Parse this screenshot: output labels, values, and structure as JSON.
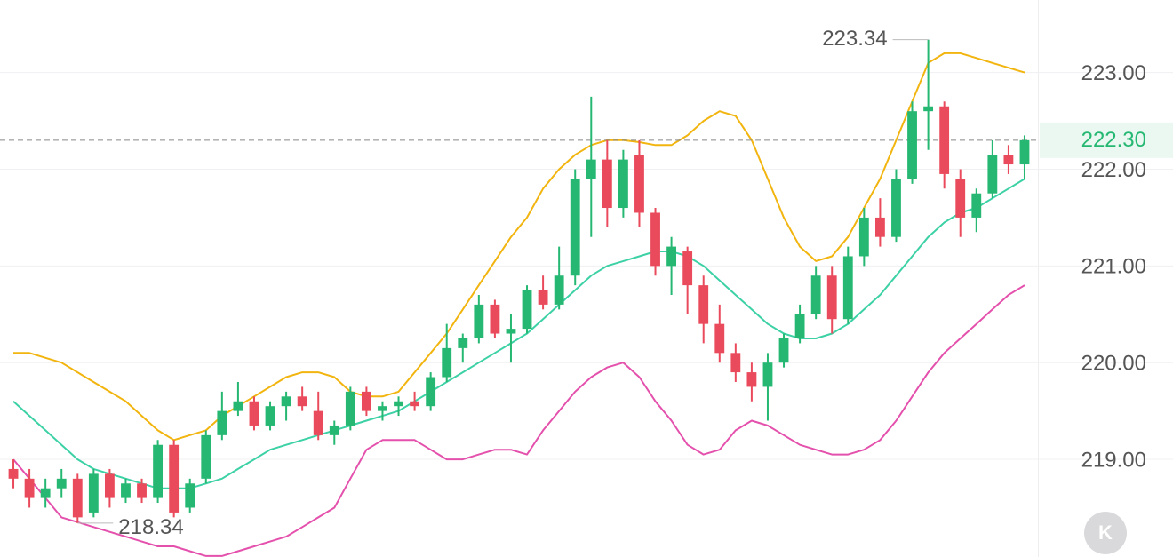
{
  "chart_data": {
    "type": "candlestick",
    "open": [
      218.9,
      218.8,
      218.6,
      218.7,
      218.8,
      218.45,
      218.85,
      218.6,
      218.75,
      218.6,
      219.15,
      218.5,
      218.8,
      219.25,
      219.5,
      219.6,
      219.35,
      219.55,
      219.65,
      219.5,
      219.25,
      219.35,
      219.7,
      219.5,
      219.55,
      219.6,
      219.55,
      219.85,
      220.15,
      220.25,
      220.6,
      220.3,
      220.35,
      220.75,
      220.6,
      220.9,
      221.9,
      222.1,
      221.6,
      222.15,
      221.55,
      221.0,
      221.15,
      220.8,
      220.4,
      220.1,
      219.9,
      219.75,
      220.0,
      220.25,
      220.5,
      220.9,
      220.45,
      221.1,
      221.5,
      221.3,
      221.9,
      222.6,
      222.65,
      221.9,
      221.5,
      221.75,
      222.15,
      222.05
    ],
    "high": [
      219.0,
      218.9,
      218.8,
      218.9,
      218.85,
      218.9,
      218.9,
      218.8,
      218.8,
      219.2,
      219.2,
      218.8,
      219.3,
      219.7,
      219.8,
      219.65,
      219.6,
      219.7,
      219.75,
      219.7,
      219.4,
      219.75,
      219.75,
      219.6,
      219.65,
      219.7,
      219.9,
      220.4,
      220.3,
      220.7,
      220.65,
      220.5,
      220.8,
      220.9,
      221.2,
      222.0,
      222.75,
      222.3,
      222.2,
      222.3,
      221.6,
      221.3,
      221.2,
      220.9,
      220.6,
      220.2,
      220.0,
      220.1,
      220.3,
      220.6,
      221.0,
      221.0,
      221.2,
      221.6,
      221.7,
      222.0,
      222.7,
      223.34,
      222.7,
      222.0,
      221.8,
      222.3,
      222.25,
      222.35
    ],
    "low": [
      218.7,
      218.5,
      218.5,
      218.6,
      218.34,
      218.4,
      218.5,
      218.55,
      218.55,
      218.55,
      218.4,
      218.45,
      218.75,
      219.2,
      219.45,
      219.3,
      219.3,
      219.4,
      219.5,
      219.2,
      219.15,
      219.3,
      219.45,
      219.4,
      219.45,
      219.5,
      219.5,
      219.8,
      220.0,
      220.2,
      220.25,
      220.0,
      220.3,
      220.55,
      220.55,
      220.8,
      221.3,
      221.4,
      221.5,
      221.4,
      220.9,
      220.7,
      220.5,
      220.2,
      220.0,
      219.8,
      219.6,
      219.4,
      219.95,
      220.2,
      220.45,
      220.3,
      220.4,
      221.0,
      221.2,
      221.25,
      221.85,
      222.2,
      221.8,
      221.3,
      221.35,
      221.7,
      221.95,
      221.9
    ],
    "close": [
      218.8,
      218.6,
      218.7,
      218.8,
      218.4,
      218.85,
      218.6,
      218.75,
      218.6,
      219.15,
      218.45,
      218.75,
      219.25,
      219.5,
      219.6,
      219.35,
      219.55,
      219.65,
      219.55,
      219.25,
      219.35,
      219.7,
      219.5,
      219.55,
      219.6,
      219.55,
      219.85,
      220.15,
      220.25,
      220.6,
      220.3,
      220.35,
      220.75,
      220.6,
      220.9,
      221.9,
      222.1,
      221.6,
      222.1,
      221.55,
      221.0,
      221.2,
      220.8,
      220.4,
      220.1,
      219.9,
      219.75,
      220.0,
      220.25,
      220.5,
      220.9,
      220.45,
      221.1,
      221.5,
      221.3,
      221.9,
      222.6,
      222.65,
      221.95,
      221.5,
      221.75,
      222.15,
      222.05,
      222.3
    ],
    "up_color": "#26b873",
    "down_color": "#ea4b5c",
    "bands": [
      {
        "color": "#f2b50f",
        "values": [
          220.1,
          220.1,
          220.05,
          220.0,
          219.9,
          219.8,
          219.7,
          219.6,
          219.45,
          219.3,
          219.2,
          219.25,
          219.3,
          219.45,
          219.55,
          219.65,
          219.75,
          219.85,
          219.9,
          219.9,
          219.85,
          219.7,
          219.65,
          219.65,
          219.7,
          219.9,
          220.1,
          220.3,
          220.55,
          220.8,
          221.05,
          221.3,
          221.5,
          221.8,
          222.0,
          222.15,
          222.25,
          222.3,
          222.3,
          222.28,
          222.25,
          222.25,
          222.35,
          222.5,
          222.6,
          222.55,
          222.3,
          221.9,
          221.5,
          221.2,
          221.05,
          221.1,
          221.3,
          221.6,
          221.9,
          222.3,
          222.7,
          223.1,
          223.2,
          223.2,
          223.15,
          223.1,
          223.05,
          223.0
        ]
      },
      {
        "color": "#3dd1a6",
        "values": [
          219.6,
          219.45,
          219.3,
          219.15,
          219.0,
          218.9,
          218.85,
          218.8,
          218.75,
          218.7,
          218.7,
          218.7,
          218.75,
          218.8,
          218.9,
          219.0,
          219.1,
          219.15,
          219.2,
          219.25,
          219.3,
          219.35,
          219.4,
          219.45,
          219.5,
          219.6,
          219.7,
          219.8,
          219.9,
          220.0,
          220.1,
          220.2,
          220.3,
          220.45,
          220.6,
          220.75,
          220.9,
          221.0,
          221.05,
          221.1,
          221.15,
          221.15,
          221.1,
          221.0,
          220.85,
          220.7,
          220.55,
          220.4,
          220.3,
          220.25,
          220.25,
          220.3,
          220.4,
          220.55,
          220.7,
          220.9,
          221.1,
          221.3,
          221.45,
          221.55,
          221.6,
          221.7,
          221.8,
          221.9
        ]
      },
      {
        "color": "#e451ad",
        "values": [
          219.0,
          218.8,
          218.6,
          218.4,
          218.35,
          218.3,
          218.25,
          218.2,
          218.15,
          218.1,
          218.1,
          218.05,
          218.0,
          218.0,
          218.05,
          218.1,
          218.15,
          218.2,
          218.3,
          218.4,
          218.5,
          218.8,
          219.1,
          219.2,
          219.2,
          219.2,
          219.1,
          219.0,
          219.0,
          219.05,
          219.1,
          219.1,
          219.05,
          219.3,
          219.5,
          219.7,
          219.85,
          219.95,
          220.0,
          219.85,
          219.6,
          219.4,
          219.15,
          219.05,
          219.1,
          219.3,
          219.4,
          219.35,
          219.25,
          219.15,
          219.1,
          219.05,
          219.05,
          219.1,
          219.2,
          219.4,
          219.65,
          219.9,
          220.1,
          220.25,
          220.4,
          220.55,
          220.7,
          220.8
        ]
      }
    ],
    "ylim": [
      217.99,
      223.75
    ],
    "yticks": [
      {
        "value": 219,
        "label": "219.00"
      },
      {
        "value": 220,
        "label": "220.00"
      },
      {
        "value": 221,
        "label": "221.00"
      },
      {
        "value": 222,
        "label": "222.00"
      },
      {
        "value": 223,
        "label": "223.00"
      }
    ],
    "grid": true,
    "last_price": {
      "value": 222.3,
      "label": "222.30"
    },
    "last_price_color": "#26b873"
  }
}
